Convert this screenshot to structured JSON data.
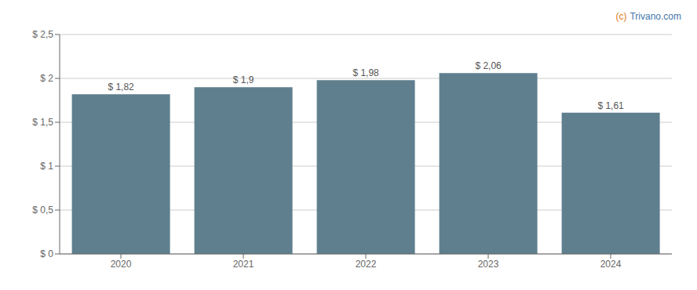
{
  "chart_data": {
    "type": "bar",
    "categories": [
      "2020",
      "2021",
      "2022",
      "2023",
      "2024"
    ],
    "values": [
      1.82,
      1.9,
      1.98,
      2.06,
      1.61
    ],
    "value_labels": [
      "$ 1,82",
      "$ 1,9",
      "$ 1,98",
      "$ 2,06",
      "$ 1,61"
    ],
    "data_labels": true,
    "color": "#5f7f8e",
    "ylim": [
      0,
      2.5
    ],
    "yticks": [
      {
        "value": 0,
        "label": "$ 0"
      },
      {
        "value": 0.5,
        "label": "$ 0,5"
      },
      {
        "value": 1.0,
        "label": "$ 1"
      },
      {
        "value": 1.5,
        "label": "$ 1,5"
      },
      {
        "value": 2.0,
        "label": "$ 2"
      },
      {
        "value": 2.5,
        "label": "$ 2,5"
      }
    ],
    "grid": true,
    "annotations": [
      {
        "text": "(c)",
        "color": "#e07820"
      },
      {
        "text": "Trivano.com",
        "color": "#4477aa"
      }
    ]
  }
}
